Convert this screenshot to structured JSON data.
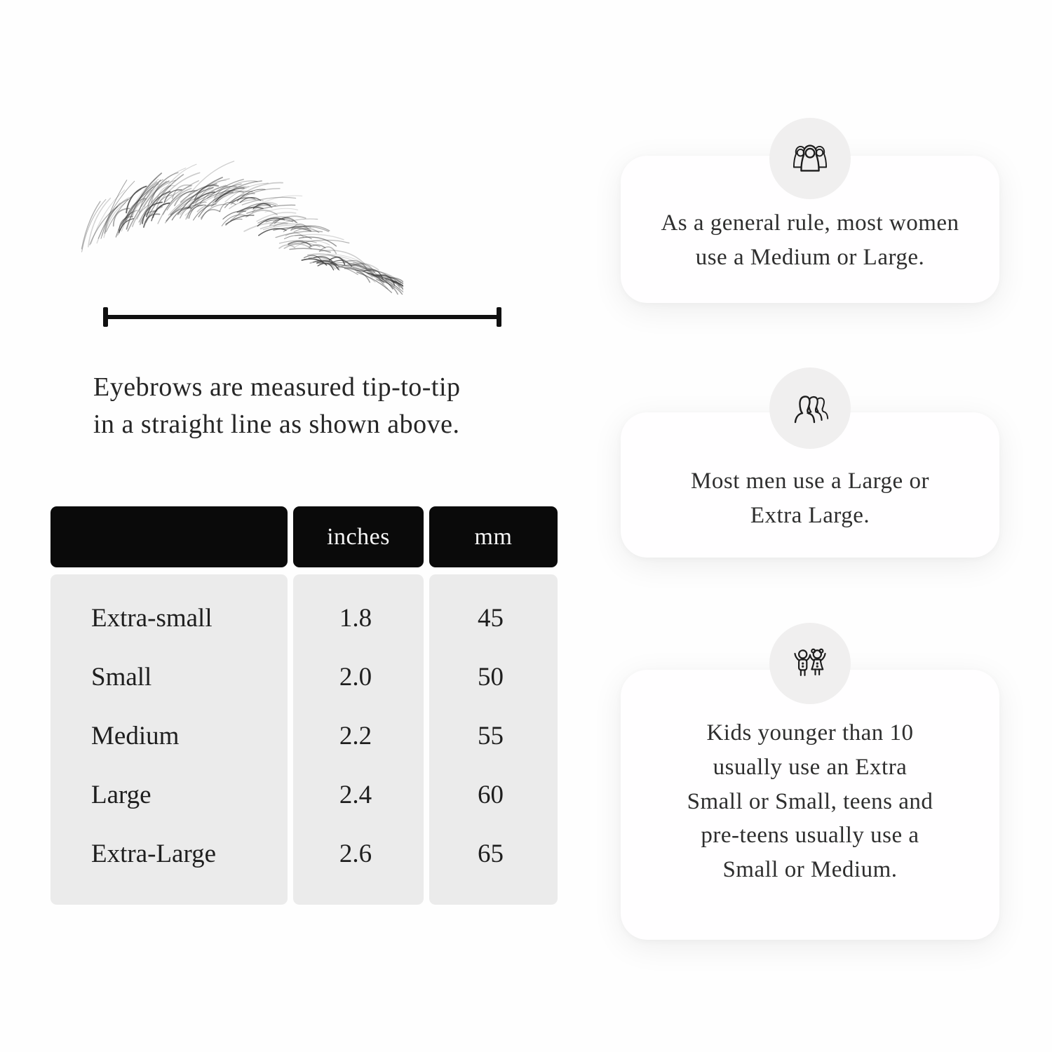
{
  "measurement": {
    "caption": "Eyebrows are measured tip-to-tip\nin a straight line as shown above."
  },
  "size_table": {
    "headers": {
      "size": "",
      "inches": "inches",
      "mm": "mm"
    },
    "rows": [
      {
        "label": "Extra-small",
        "inches": "1.8",
        "mm": "45"
      },
      {
        "label": "Small",
        "inches": "2.0",
        "mm": "50"
      },
      {
        "label": "Medium",
        "inches": "2.2",
        "mm": "55"
      },
      {
        "label": "Large",
        "inches": "2.4",
        "mm": "60"
      },
      {
        "label": "Extra-Large",
        "inches": "2.6",
        "mm": "65"
      }
    ]
  },
  "cards": [
    {
      "icon": "women-group-icon",
      "text": "As a general rule, most women\nuse a Medium or Large."
    },
    {
      "icon": "men-group-icon",
      "text": "Most men use a Large or\nExtra Large."
    },
    {
      "icon": "kids-icon",
      "text": "Kids younger than 10\nusually use an Extra\nSmall or Small, teens and\npre-teens usually use a\nSmall or Medium."
    }
  ],
  "colors": {
    "table_header_bg": "#0a0a0a",
    "table_body_bg": "#ebebeb",
    "card_bg": "#fffeff",
    "icon_circle_bg": "#f0efef",
    "line": "#101010",
    "text": "#2b2b2b"
  }
}
